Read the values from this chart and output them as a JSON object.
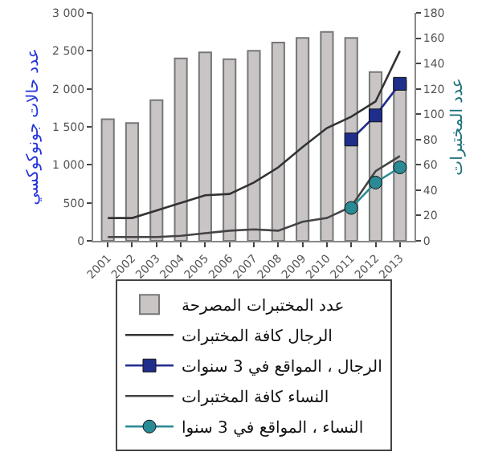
{
  "chart_data": {
    "type": "bar",
    "ylabel": "عدد حالات جونوكوكسي",
    "y2label": "عدد المختبرات",
    "categories": [
      "2001",
      "2002",
      "2003",
      "2004",
      "2005",
      "2006",
      "2007",
      "2008",
      "2009",
      "2010",
      "2011",
      "2012",
      "2013"
    ],
    "series": [
      {
        "name": "عدد المختبرات المصرحة",
        "color": "#c9c5c5",
        "values": [
          1600,
          1550,
          1850,
          2400,
          2480,
          2390,
          2500,
          2610,
          2670,
          2750,
          2670,
          2220,
          2100
        ]
      },
      {
        "name": "الرجال كافة المختبرات",
        "type": "line",
        "axis": "y2",
        "color": "#333333",
        "marker": "none",
        "values": [
          18,
          18,
          24,
          30,
          36,
          37,
          46,
          58,
          74,
          89,
          98,
          110,
          150
        ]
      },
      {
        "name": "الرجال ، المواقع في 3 سنوات",
        "type": "line",
        "axis": "y2",
        "color": "#1f2e8a",
        "marker": "square",
        "values": [
          null,
          null,
          null,
          null,
          null,
          null,
          null,
          null,
          null,
          null,
          80,
          99,
          124
        ]
      },
      {
        "name": "النساء كافة المختبرات",
        "type": "line",
        "axis": "y2",
        "color": "#444444",
        "marker": "none",
        "values": [
          3,
          3,
          3,
          4,
          6,
          8,
          9,
          8,
          15,
          18,
          27,
          55,
          67
        ]
      },
      {
        "name": "النساء ، المواقع في 3 سنوا",
        "type": "line",
        "axis": "y2",
        "color": "#2a8a96",
        "marker": "circle",
        "values": [
          null,
          null,
          null,
          null,
          null,
          null,
          null,
          null,
          null,
          null,
          26,
          46,
          58
        ]
      }
    ],
    "ylim": [
      0,
      3000
    ],
    "yticks": [
      0,
      500,
      {
        "value": 1000,
        "label": "1 000"
      },
      {
        "value": 1500,
        "label": "1 500"
      },
      {
        "value": 2000,
        "label": "2 000"
      },
      {
        "value": 2500,
        "label": "2 500"
      },
      {
        "value": 3000,
        "label": "3 000"
      }
    ],
    "y2lim": [
      0,
      180
    ],
    "y2ticks": [
      0,
      20,
      40,
      60,
      80,
      100,
      120,
      140,
      160,
      180
    ],
    "grid": false,
    "legend": "bottom"
  }
}
